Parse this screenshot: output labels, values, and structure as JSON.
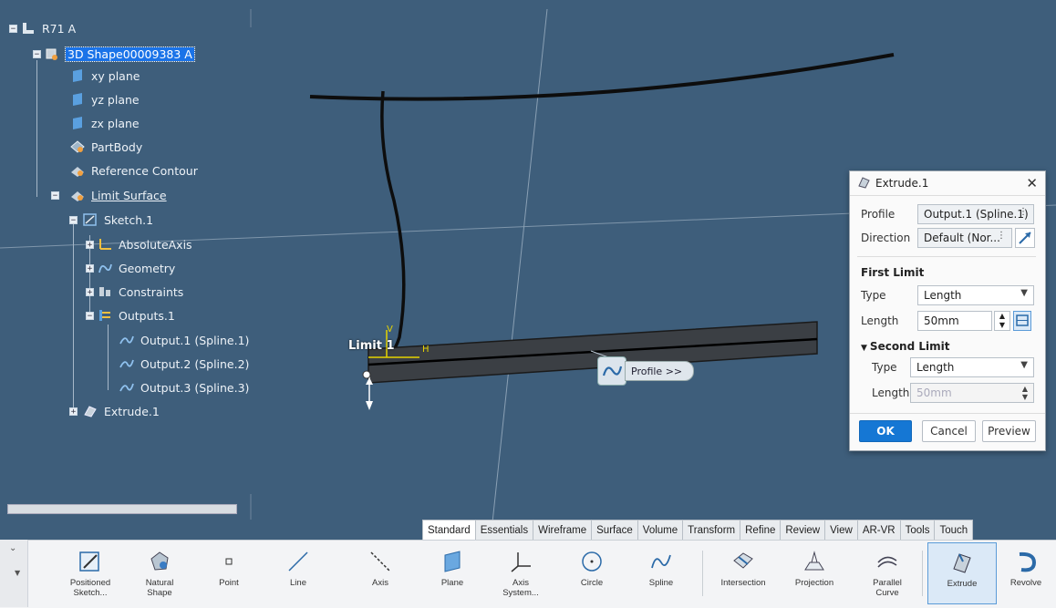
{
  "tree": {
    "root": "R71 A",
    "shape": "3D Shape00009383 A",
    "xy": "xy plane",
    "yz": "yz plane",
    "zx": "zx plane",
    "partbody": "PartBody",
    "refcontour": "Reference Contour",
    "limitsurface": "Limit Surface",
    "sketch": "Sketch.1",
    "absaxis": "AbsoluteAxis",
    "geometry": "Geometry",
    "constraints": "Constraints",
    "outputs": "Outputs.1",
    "out1": "Output.1 (Spline.1)",
    "out2": "Output.2 (Spline.2)",
    "out3": "Output.3 (Spline.3)",
    "extrude": "Extrude.1"
  },
  "viewport": {
    "limit_label": "Limit 1",
    "axis_v": "V",
    "axis_h": "H",
    "profile_tag": "Profile >>"
  },
  "dialog": {
    "title": "Extrude.1",
    "close": "✕",
    "profile_label": "Profile",
    "profile_value": "Output.1 (Spline.1)",
    "direction_label": "Direction",
    "direction_value": "Default (Nor...",
    "first_limit": "First Limit",
    "type_label": "Type",
    "type_value": "Length",
    "length_label": "Length",
    "length_value": "50mm",
    "second_limit": "Second Limit",
    "type2_label": "Type",
    "type2_value": "Length",
    "length2_label": "Length",
    "length2_value": "50mm",
    "ok": "OK",
    "cancel": "Cancel",
    "preview": "Preview"
  },
  "tabs": [
    "Standard",
    "Essentials",
    "Wireframe",
    "Surface",
    "Volume",
    "Transform",
    "Refine",
    "Review",
    "View",
    "AR-VR",
    "Tools",
    "Touch"
  ],
  "tools": {
    "positioned_sketch_1": "Positioned",
    "positioned_sketch_2": "Sketch...",
    "natural_shape_1": "Natural",
    "natural_shape_2": "Shape",
    "point": "Point",
    "line": "Line",
    "axis": "Axis",
    "plane": "Plane",
    "axis_system_1": "Axis",
    "axis_system_2": "System...",
    "circle": "Circle",
    "spline": "Spline",
    "intersection": "Intersection",
    "projection": "Projection",
    "parallel_curve_1": "Parallel",
    "parallel_curve_2": "Curve",
    "extrude": "Extrude",
    "revolve": "Revolve"
  },
  "colors": {
    "viewport": "#3e5e7b",
    "accent": "#1577d4",
    "selection": "#1a73e8"
  }
}
